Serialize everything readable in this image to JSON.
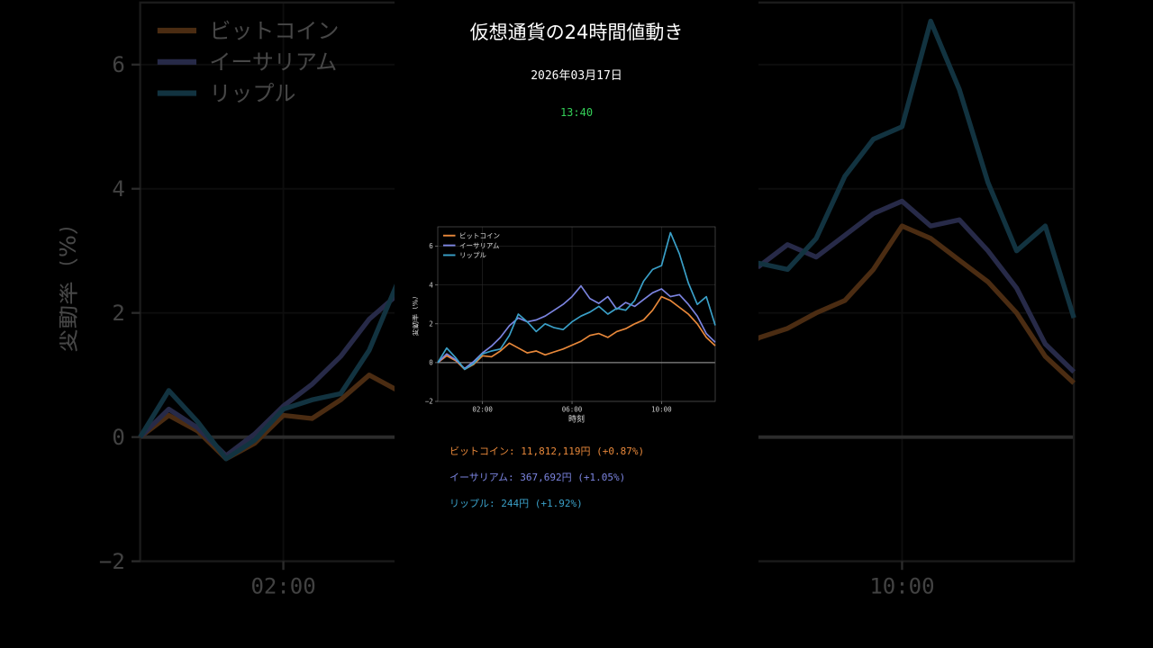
{
  "header": {
    "title": "仮想通貨の24時間値動き",
    "date": "2026年03月17日",
    "time": "13:40",
    "time_color": "#34d058"
  },
  "chart_data": {
    "type": "line",
    "title": "",
    "xlabel": "時刻",
    "ylabel": "変動率（%）",
    "x_range_hours": [
      0,
      12.4
    ],
    "ylim": [
      -2,
      7
    ],
    "yticks": [
      -2,
      0,
      2,
      4,
      6
    ],
    "xticks": [
      {
        "hour": 2,
        "label": "02:00"
      },
      {
        "hour": 6,
        "label": "06:00"
      },
      {
        "hour": 10,
        "label": "10:00"
      }
    ],
    "grid": true,
    "legend_position": "top-left",
    "x_hours": [
      0,
      0.4,
      0.8,
      1.2,
      1.6,
      2,
      2.4,
      2.8,
      3.2,
      3.6,
      4,
      4.4,
      4.8,
      5.2,
      5.6,
      6,
      6.4,
      6.8,
      7.2,
      7.6,
      8,
      8.4,
      8.8,
      9.2,
      9.6,
      10,
      10.4,
      10.8,
      11.2,
      11.6,
      12,
      12.4
    ],
    "series": [
      {
        "name": "ビットコイン",
        "color": "#e8883a",
        "values": [
          0.0,
          0.35,
          0.1,
          -0.35,
          -0.1,
          0.35,
          0.3,
          0.6,
          1.0,
          0.75,
          0.5,
          0.6,
          0.4,
          0.55,
          0.7,
          0.9,
          1.1,
          1.4,
          1.5,
          1.3,
          1.6,
          1.75,
          2.0,
          2.2,
          2.7,
          3.4,
          3.2,
          2.85,
          2.5,
          2.0,
          1.3,
          0.87
        ]
      },
      {
        "name": "イーサリアム",
        "color": "#7b84e0",
        "values": [
          0.0,
          0.45,
          0.15,
          -0.3,
          0.05,
          0.5,
          0.85,
          1.3,
          1.9,
          2.3,
          2.1,
          2.2,
          2.4,
          2.7,
          3.0,
          3.4,
          3.95,
          3.3,
          3.05,
          3.4,
          2.75,
          3.1,
          2.9,
          3.25,
          3.6,
          3.8,
          3.4,
          3.5,
          3.0,
          2.4,
          1.5,
          1.05
        ]
      },
      {
        "name": "リップル",
        "color": "#3aa0c8",
        "values": [
          0.0,
          0.75,
          0.25,
          -0.35,
          -0.05,
          0.45,
          0.6,
          0.7,
          1.4,
          2.5,
          2.1,
          1.6,
          2.0,
          1.8,
          1.7,
          2.1,
          2.4,
          2.6,
          2.9,
          2.5,
          2.8,
          2.7,
          3.2,
          4.2,
          4.8,
          5.0,
          6.7,
          5.6,
          4.1,
          3.0,
          3.4,
          1.92
        ]
      }
    ]
  },
  "prices": [
    {
      "name": "ビットコイン",
      "price": "11,812,119円",
      "change": "(+0.87%)",
      "color": "#e8883a"
    },
    {
      "name": "イーサリアム",
      "price": "367,692円",
      "change": "(+1.05%)",
      "color": "#7b84e0"
    },
    {
      "name": "リップル",
      "price": "244円",
      "change": "(+1.92%)",
      "color": "#3aa0c8"
    }
  ]
}
